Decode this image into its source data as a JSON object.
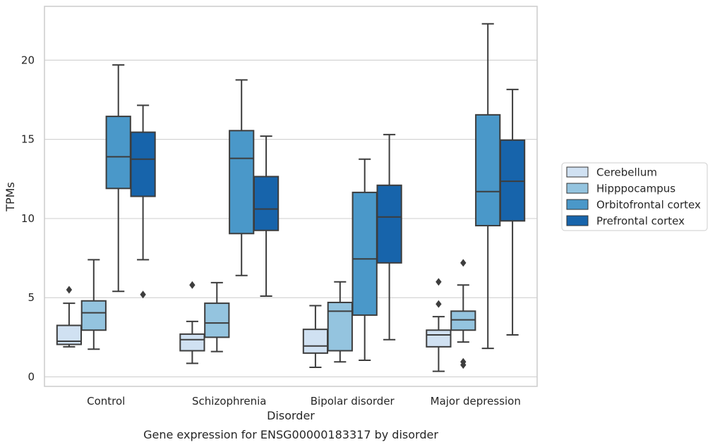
{
  "chart_data": {
    "type": "box",
    "caption": "Gene expression for ENSG00000183317 by disorder",
    "xlabel": "Disorder",
    "ylabel": "TPMs",
    "ylim": [
      -0.6,
      23.4
    ],
    "yticks": [
      0,
      5,
      10,
      15,
      20
    ],
    "grid": "horizontal",
    "legend_position": "right",
    "categories": [
      "Control",
      "Schizophrenia",
      "Bipolar disorder",
      "Major depression"
    ],
    "series": [
      {
        "name": "Cerebellum",
        "color": "#d0e1f2",
        "boxes": [
          {
            "whislo": 1.9,
            "q1": 2.05,
            "med": 2.25,
            "q3": 3.25,
            "whishi": 4.65,
            "fliers": [
              5.5
            ]
          },
          {
            "whislo": 0.85,
            "q1": 1.65,
            "med": 2.35,
            "q3": 2.7,
            "whishi": 3.5,
            "fliers": [
              5.8
            ]
          },
          {
            "whislo": 0.6,
            "q1": 1.5,
            "med": 1.95,
            "q3": 3.0,
            "whishi": 4.5,
            "fliers": []
          },
          {
            "whislo": 0.35,
            "q1": 1.9,
            "med": 2.65,
            "q3": 2.95,
            "whishi": 3.8,
            "fliers": [
              4.6,
              6.0
            ]
          }
        ]
      },
      {
        "name": "Hipppocampus",
        "color": "#94c4df",
        "boxes": [
          {
            "whislo": 1.75,
            "q1": 2.95,
            "med": 4.05,
            "q3": 4.8,
            "whishi": 7.4,
            "fliers": []
          },
          {
            "whislo": 1.6,
            "q1": 2.5,
            "med": 3.4,
            "q3": 4.65,
            "whishi": 5.95,
            "fliers": []
          },
          {
            "whislo": 0.95,
            "q1": 1.65,
            "med": 4.15,
            "q3": 4.7,
            "whishi": 6.0,
            "fliers": []
          },
          {
            "whislo": 2.2,
            "q1": 2.95,
            "med": 3.6,
            "q3": 4.15,
            "whishi": 5.8,
            "fliers": [
              0.75,
              0.95,
              7.2
            ]
          }
        ]
      },
      {
        "name": "Orbitofrontal cortex",
        "color": "#4a98c9",
        "boxes": [
          {
            "whislo": 5.4,
            "q1": 11.9,
            "med": 13.9,
            "q3": 16.45,
            "whishi": 19.7,
            "fliers": []
          },
          {
            "whislo": 6.4,
            "q1": 9.05,
            "med": 13.8,
            "q3": 15.55,
            "whishi": 18.75,
            "fliers": []
          },
          {
            "whislo": 1.05,
            "q1": 3.9,
            "med": 7.45,
            "q3": 11.65,
            "whishi": 13.75,
            "fliers": []
          },
          {
            "whislo": 1.8,
            "q1": 9.55,
            "med": 11.7,
            "q3": 16.55,
            "whishi": 22.3,
            "fliers": []
          }
        ]
      },
      {
        "name": "Prefrontal cortex",
        "color": "#1764ab",
        "boxes": [
          {
            "whislo": 7.4,
            "q1": 11.4,
            "med": 13.75,
            "q3": 15.45,
            "whishi": 17.15,
            "fliers": [
              5.2
            ]
          },
          {
            "whislo": 5.1,
            "q1": 9.25,
            "med": 10.6,
            "q3": 12.65,
            "whishi": 15.2,
            "fliers": []
          },
          {
            "whislo": 2.35,
            "q1": 7.2,
            "med": 10.1,
            "q3": 12.1,
            "whishi": 15.3,
            "fliers": []
          },
          {
            "whislo": 2.65,
            "q1": 9.85,
            "med": 12.35,
            "q3": 14.95,
            "whishi": 18.15,
            "fliers": []
          }
        ]
      }
    ]
  }
}
